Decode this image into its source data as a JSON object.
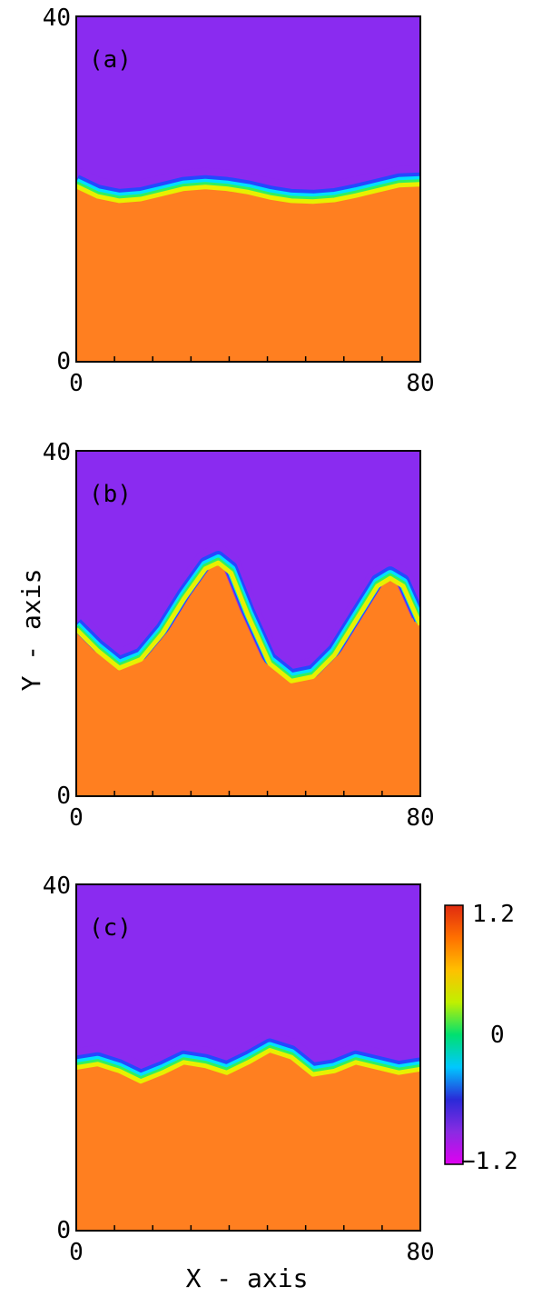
{
  "chart_data": [
    {
      "type": "heatmap",
      "panel_label": "(a)",
      "xlim": [
        0,
        80
      ],
      "ylim": [
        0,
        40
      ],
      "x_tick_labels": [
        "0",
        "80"
      ],
      "y_tick_labels": [
        "0",
        "40"
      ],
      "interface": {
        "x": [
          0,
          5,
          10,
          15,
          20,
          25,
          30,
          35,
          40,
          45,
          50,
          55,
          60,
          65,
          70,
          75,
          80
        ],
        "y": [
          21.5,
          20.3,
          19.8,
          20.0,
          20.6,
          21.2,
          21.4,
          21.2,
          20.8,
          20.2,
          19.8,
          19.7,
          19.9,
          20.4,
          21.0,
          21.6,
          21.7
        ]
      },
      "upper_value": -1.2,
      "lower_value": 1.0
    },
    {
      "type": "heatmap",
      "panel_label": "(b)",
      "xlim": [
        0,
        80
      ],
      "ylim": [
        0,
        40
      ],
      "x_tick_labels": [
        "0",
        "80"
      ],
      "y_tick_labels": [
        "0",
        "40"
      ],
      "interface": {
        "x": [
          0,
          5,
          10,
          15,
          20,
          25,
          30,
          33,
          36,
          40,
          45,
          50,
          55,
          60,
          65,
          70,
          73,
          76,
          80
        ],
        "y": [
          20.5,
          18.0,
          16.0,
          17.0,
          20.0,
          24.0,
          27.5,
          28.2,
          27.0,
          22.0,
          16.5,
          14.5,
          15.0,
          17.5,
          21.5,
          25.5,
          26.4,
          25.5,
          21.0
        ]
      },
      "upper_value": -1.2,
      "lower_value": 1.0
    },
    {
      "type": "heatmap",
      "panel_label": "(c)",
      "xlim": [
        0,
        80
      ],
      "ylim": [
        0,
        40
      ],
      "x_tick_labels": [
        "0",
        "80"
      ],
      "y_tick_labels": [
        "0",
        "40"
      ],
      "interface": {
        "x": [
          0,
          5,
          10,
          15,
          20,
          25,
          30,
          35,
          40,
          45,
          50,
          55,
          60,
          65,
          70,
          75,
          80
        ],
        "y": [
          20.0,
          20.4,
          19.6,
          18.4,
          19.4,
          20.6,
          20.2,
          19.4,
          20.6,
          22.0,
          21.2,
          19.2,
          19.6,
          20.6,
          20.0,
          19.4,
          19.8
        ]
      },
      "upper_value": -1.2,
      "lower_value": 1.0
    }
  ],
  "axes": {
    "xlabel": "X - axis",
    "ylabel": "Y - axis"
  },
  "colorbar": {
    "min": -1.2,
    "max": 1.2,
    "tick_labels": [
      "1.2",
      "0",
      "−1.2"
    ],
    "tick_values": [
      1.2,
      0,
      -1.2
    ],
    "colors": [
      "#e000f0",
      "#8a2be2",
      "#2a2ad8",
      "#00c8ff",
      "#00e070",
      "#c0f000",
      "#ffc000",
      "#ff7000",
      "#e02a10"
    ]
  },
  "colors": {
    "upper_phase": "#8a2bf0",
    "lower_phase": "#ff7f20",
    "interface": [
      "#2448ff",
      "#00e0ff",
      "#30f060",
      "#e8f000"
    ]
  }
}
